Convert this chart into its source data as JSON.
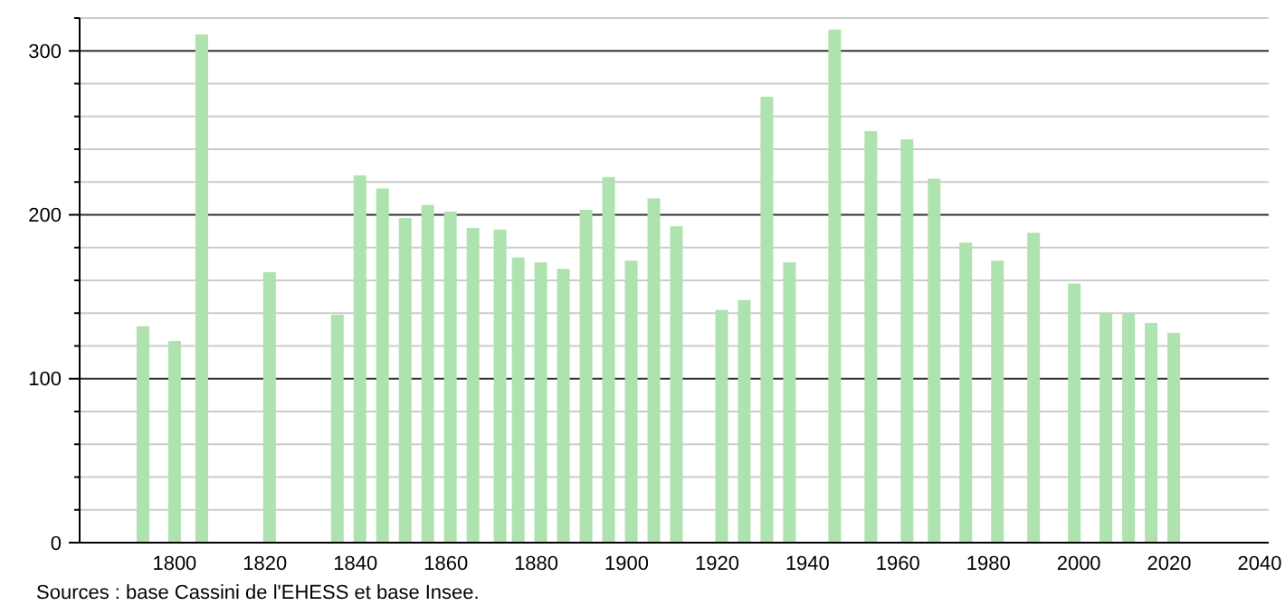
{
  "chart_data": {
    "type": "bar",
    "x": [
      1793,
      1800,
      1806,
      1821,
      1836,
      1841,
      1846,
      1851,
      1856,
      1861,
      1866,
      1872,
      1876,
      1881,
      1886,
      1891,
      1896,
      1901,
      1906,
      1911,
      1921,
      1926,
      1931,
      1936,
      1946,
      1954,
      1962,
      1968,
      1975,
      1982,
      1990,
      1999,
      2006,
      2011,
      2016,
      2021
    ],
    "values": [
      132,
      123,
      310,
      165,
      139,
      224,
      216,
      198,
      206,
      202,
      192,
      191,
      174,
      171,
      167,
      203,
      223,
      172,
      210,
      193,
      142,
      148,
      272,
      171,
      313,
      251,
      246,
      222,
      183,
      172,
      189,
      158,
      140,
      140,
      134,
      128
    ],
    "color": "#aee2ae",
    "xlim": [
      1779,
      2042
    ],
    "xticks": [
      1800,
      1820,
      1840,
      1860,
      1880,
      1900,
      1920,
      1940,
      1960,
      1980,
      2000,
      2020,
      2040
    ],
    "ylim": [
      0,
      320
    ],
    "yticks": [
      0,
      {
        "value": 20,
        "label": null
      },
      {
        "value": 40,
        "label": null
      },
      {
        "value": 60,
        "label": null
      },
      {
        "value": 80,
        "label": null
      },
      100,
      {
        "value": 120,
        "label": null
      },
      {
        "value": 140,
        "label": null
      },
      {
        "value": 160,
        "label": null
      },
      {
        "value": 180,
        "label": null
      },
      200,
      {
        "value": 220,
        "label": null
      },
      {
        "value": 240,
        "label": null
      },
      {
        "value": 260,
        "label": null
      },
      {
        "value": 280,
        "label": null
      },
      300,
      {
        "value": 320,
        "label": null
      }
    ],
    "grid": true,
    "annotations": [
      "Sources : base Cassini de l'EHESS et base Insee."
    ]
  }
}
